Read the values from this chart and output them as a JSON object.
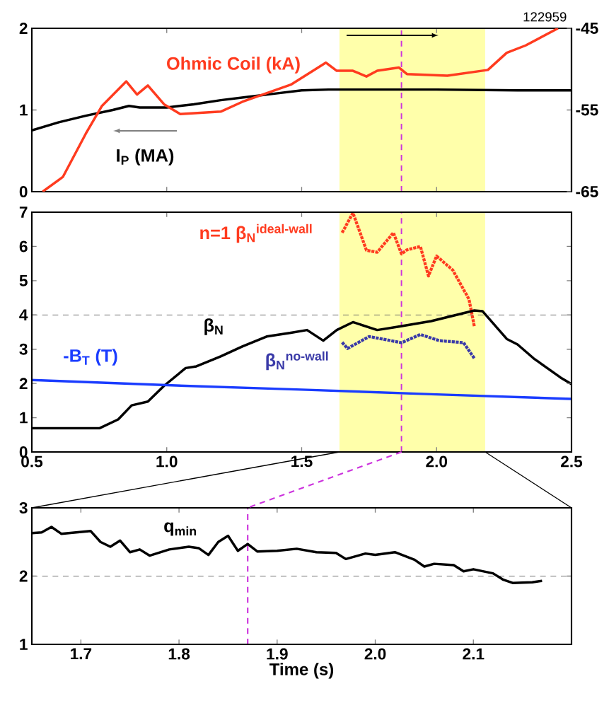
{
  "chart_data": [
    {
      "type": "line",
      "xlim": [
        0.5,
        2.5
      ],
      "xticks": [
        {
          "value": 0.5,
          "label": null
        },
        {
          "value": 1.0,
          "label": null
        },
        {
          "value": 1.5,
          "label": null
        },
        {
          "value": 2.0,
          "label": null
        },
        {
          "value": 2.5,
          "label": null
        }
      ],
      "ylim": [
        0,
        2
      ],
      "yticks": [
        0,
        1,
        2
      ],
      "y2lim": [
        -65,
        -45
      ],
      "y2ticks": [
        -65,
        -55,
        -45
      ],
      "tick_labels": "y",
      "grid": false,
      "annotations": [
        "122959"
      ],
      "bands": [
        {
          "axis": "x",
          "from": 1.64,
          "to": 2.18,
          "color": "#ffffaa"
        }
      ],
      "ref_lines": [
        {
          "axis": "x",
          "value": 1.87,
          "color": "#cc33dd",
          "line_style": "dashed"
        }
      ],
      "series": [
        {
          "name": "Ohmic Coil (kA)",
          "color": "#ff3b1f",
          "axis": "y2",
          "x": [
            0.54,
            0.615,
            0.7,
            0.76,
            0.85,
            0.89,
            0.93,
            0.99,
            1.05,
            1.2,
            1.28,
            1.46,
            1.59,
            1.63,
            1.69,
            1.74,
            1.78,
            1.86,
            1.89,
            2.04,
            2.19,
            2.26,
            2.33,
            2.45
          ],
          "values": [
            -65,
            -63.2,
            -57.9,
            -54.5,
            -51.5,
            -53.1,
            -52,
            -54.3,
            -55.5,
            -55.2,
            -54,
            -51.9,
            -49.2,
            -50.2,
            -50.2,
            -50.9,
            -50.2,
            -49.8,
            -50.6,
            -50.8,
            -50.1,
            -48,
            -47.1,
            -45
          ]
        },
        {
          "name": "I$_{P}$ (MA)",
          "color": "#000000",
          "x": [
            0.5,
            0.6,
            0.7,
            0.8,
            0.86,
            0.9,
            1.0,
            1.1,
            1.2,
            1.3,
            1.4,
            1.5,
            1.6,
            1.7,
            2.0,
            2.3,
            2.5
          ],
          "values": [
            0.75,
            0.85,
            0.93,
            1.0,
            1.05,
            1.03,
            1.03,
            1.07,
            1.12,
            1.16,
            1.2,
            1.24,
            1.25,
            1.25,
            1.25,
            1.24,
            1.24
          ]
        }
      ]
    },
    {
      "type": "line",
      "xlim": [
        0.5,
        2.5
      ],
      "xticks": [
        {
          "value": 0.5,
          "label": "0.5"
        },
        {
          "value": 1.0,
          "label": "1.0"
        },
        {
          "value": 1.5,
          "label": "1.5"
        },
        {
          "value": 2.0,
          "label": "2.0"
        },
        {
          "value": 2.5,
          "label": "2.5"
        }
      ],
      "ylim": [
        0,
        7
      ],
      "yticks": [
        0,
        1,
        2,
        3,
        4,
        5,
        6,
        7
      ],
      "grid": false,
      "bands": [
        {
          "axis": "x",
          "from": 1.64,
          "to": 2.18,
          "color": "#ffffaa"
        }
      ],
      "ref_lines": [
        {
          "axis": "y",
          "value": 4,
          "color": "#666666",
          "line_style": "dashed"
        },
        {
          "axis": "x",
          "value": 1.87,
          "color": "#cc33dd",
          "line_style": "dashed"
        }
      ],
      "series": [
        {
          "name": "n=1 β$_{N}$$^{ideal-wall}$",
          "color": "#ff3b1f",
          "line_style": "dotted",
          "x": [
            1.65,
            1.69,
            1.74,
            1.78,
            1.84,
            1.87,
            1.89,
            1.94,
            1.97,
            2.0,
            2.06,
            2.12,
            2.14
          ],
          "values": [
            6.4,
            6.98,
            5.89,
            5.83,
            6.4,
            5.78,
            5.9,
            6.0,
            5.14,
            5.72,
            5.31,
            4.46,
            3.66
          ]
        },
        {
          "name": "β$_{N}$",
          "color": "#000000",
          "x": [
            0.5,
            0.75,
            0.82,
            0.87,
            0.93,
            0.99,
            1.07,
            1.11,
            1.2,
            1.28,
            1.37,
            1.46,
            1.52,
            1.58,
            1.63,
            1.69,
            1.78,
            1.86,
            1.98,
            2.14,
            2.17,
            2.26,
            2.3,
            2.36,
            2.46,
            2.5
          ],
          "values": [
            0.69,
            0.69,
            0.95,
            1.36,
            1.47,
            1.93,
            2.45,
            2.5,
            2.79,
            3.08,
            3.37,
            3.48,
            3.56,
            3.25,
            3.56,
            3.79,
            3.56,
            3.66,
            3.82,
            4.13,
            4.11,
            3.3,
            3.14,
            2.73,
            2.17,
            1.98
          ]
        },
        {
          "name": "β$_{N}$$^{no-wall}$",
          "color": "#3a3aa8",
          "line_style": "dotted",
          "x": [
            1.65,
            1.67,
            1.75,
            1.87,
            1.94,
            2.01,
            2.1,
            2.14
          ],
          "values": [
            3.2,
            3.02,
            3.37,
            3.19,
            3.43,
            3.25,
            3.19,
            2.73
          ]
        },
        {
          "name": "-B$_{T}$ (T)",
          "color": "#1a3cff",
          "x": [
            0.5,
            1.0,
            1.5,
            2.0,
            2.5
          ],
          "values": [
            2.1,
            1.95,
            1.82,
            1.68,
            1.55
          ]
        }
      ]
    },
    {
      "type": "line",
      "xlabel": "Time (s)",
      "xlim": [
        1.65,
        2.2
      ],
      "xticks": [
        1.7,
        1.8,
        1.9,
        {
          "value": 2.0,
          "label": "2.0"
        },
        2.1
      ],
      "ylim": [
        1,
        3
      ],
      "yticks": [
        1,
        2,
        3
      ],
      "grid": false,
      "ref_lines": [
        {
          "axis": "y",
          "value": 2,
          "color": "#666666",
          "line_style": "dashed"
        },
        {
          "axis": "x",
          "value": 1.87,
          "color": "#cc33dd",
          "line_style": "dashed"
        }
      ],
      "series": [
        {
          "name": "q$_{min}$",
          "color": "#000000",
          "x": [
            1.65,
            1.66,
            1.67,
            1.68,
            1.71,
            1.72,
            1.73,
            1.74,
            1.75,
            1.76,
            1.77,
            1.79,
            1.81,
            1.82,
            1.83,
            1.84,
            1.85,
            1.86,
            1.87,
            1.88,
            1.9,
            1.92,
            1.94,
            1.96,
            1.97,
            1.99,
            2.0,
            2.02,
            2.04,
            2.05,
            2.06,
            2.08,
            2.09,
            2.1,
            2.12,
            2.13,
            2.14,
            2.16,
            2.17
          ],
          "values": [
            2.63,
            2.64,
            2.72,
            2.62,
            2.66,
            2.5,
            2.43,
            2.52,
            2.35,
            2.39,
            2.3,
            2.39,
            2.43,
            2.41,
            2.31,
            2.5,
            2.59,
            2.37,
            2.47,
            2.36,
            2.37,
            2.4,
            2.35,
            2.34,
            2.25,
            2.33,
            2.31,
            2.35,
            2.24,
            2.14,
            2.18,
            2.16,
            2.07,
            2.1,
            2.04,
            1.95,
            1.9,
            1.91,
            1.93
          ]
        }
      ]
    }
  ]
}
